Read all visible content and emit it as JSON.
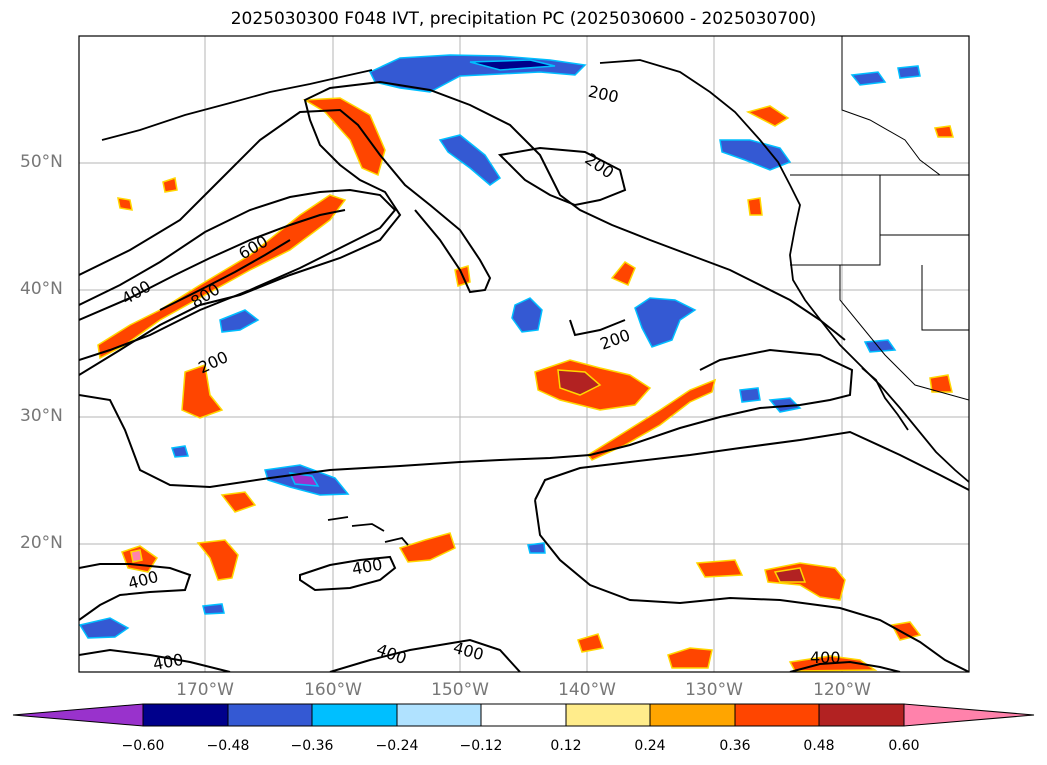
{
  "title": "2025030300 F048 IVT, precipitation PC (2025030600 - 2025030700)",
  "lat_labels": [
    "50°N",
    "40°N",
    "30°N",
    "20°N"
  ],
  "lon_labels": [
    "170°W",
    "160°W",
    "150°W",
    "140°W",
    "130°W",
    "120°W"
  ],
  "contour_labels": [
    "200",
    "200",
    "200",
    "200",
    "400",
    "400",
    "400",
    "400",
    "400",
    "400",
    "400",
    "600",
    "800"
  ],
  "colorbar": {
    "ticks": [
      "−0.60",
      "−0.48",
      "−0.36",
      "−0.24",
      "−0.12",
      "0.12",
      "0.24",
      "0.36",
      "0.48",
      "0.60"
    ],
    "colors": [
      "#9932cc",
      "#00008b",
      "#3459d3",
      "#00bfff",
      "#b0e2ff",
      "#ffffff",
      "#ffec8b",
      "#ffa500",
      "#ff4500",
      "#b22222",
      "#ff82ab"
    ]
  },
  "colors": {
    "positive_anomaly": "#ff4500",
    "negative_anomaly": "#3459d3",
    "contour": "#000000",
    "grid": "#b5b5b5"
  }
}
